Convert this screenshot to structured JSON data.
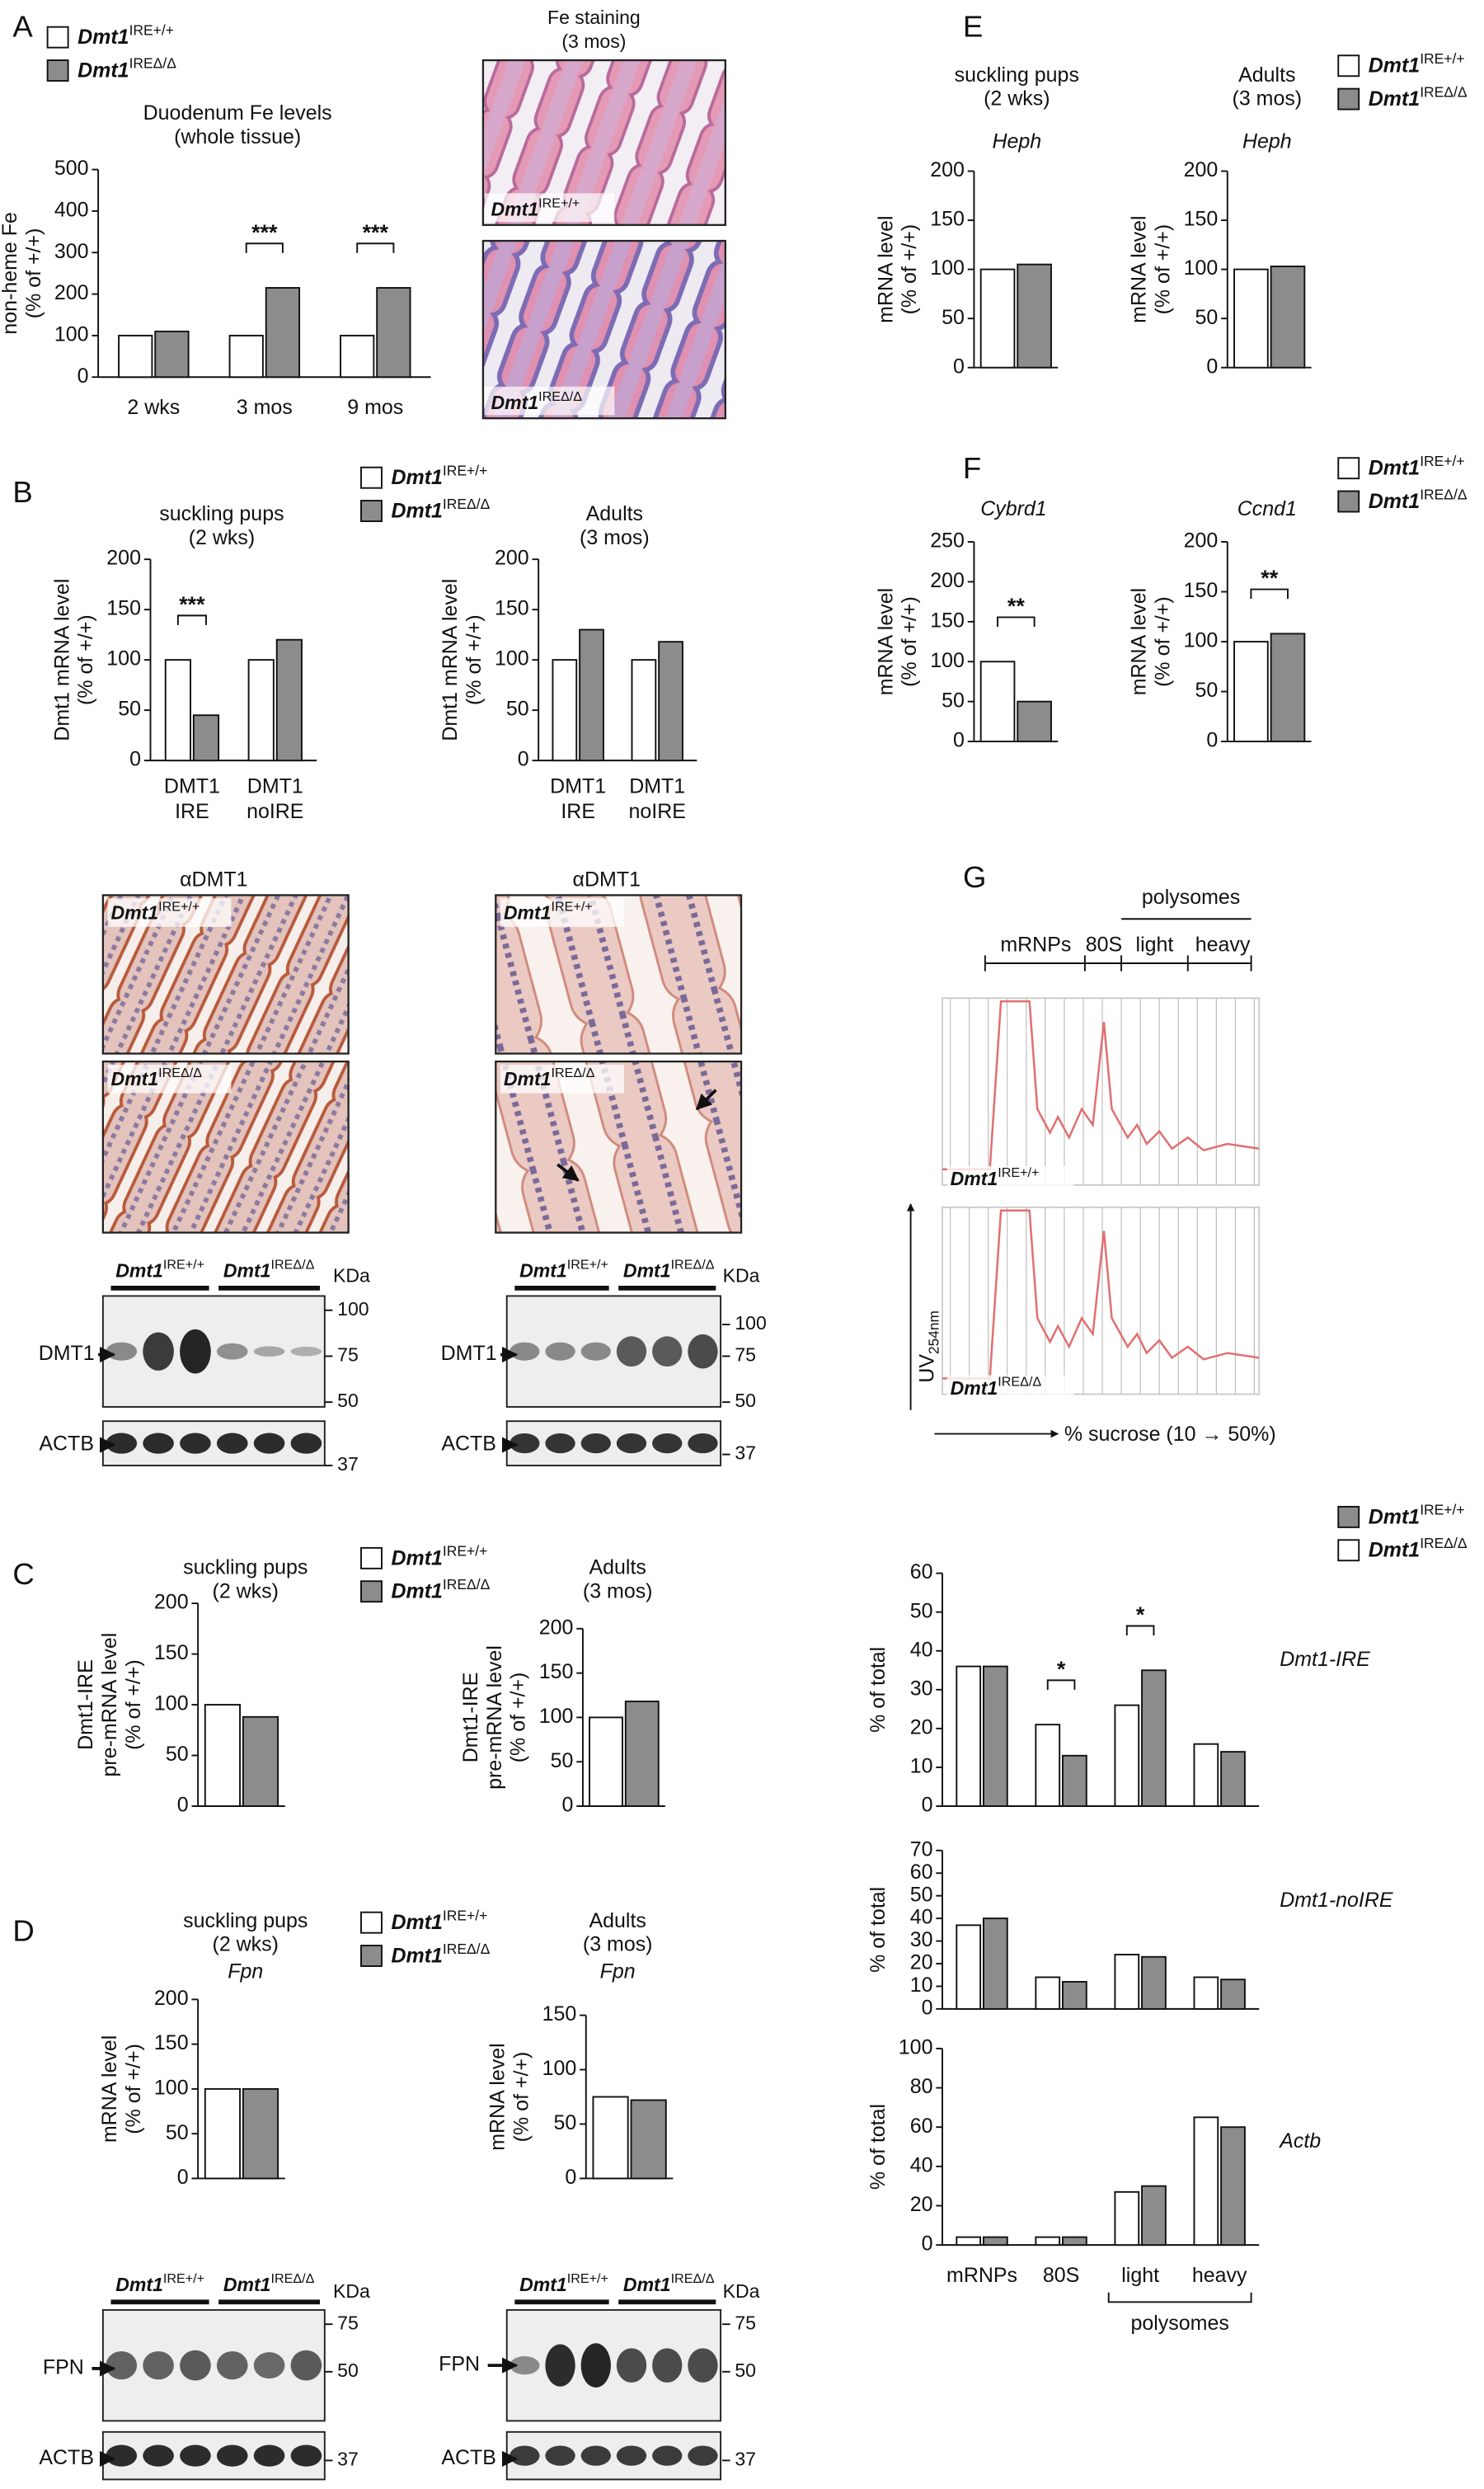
{
  "panels": [
    "A",
    "B",
    "C",
    "D",
    "E",
    "F",
    "G"
  ],
  "genotypes": [
    {
      "name": "Dmt1",
      "sup": "IRE+/+"
    },
    {
      "name": "Dmt1",
      "sup": "IREΔ/Δ"
    }
  ],
  "fe_staining": [
    "Fe staining",
    "(3 mos)"
  ],
  "ihc": "αDMT1",
  "blots": {
    "kda": "KDa",
    "dmt1": "DMT1",
    "actb": "ACTB",
    "fpn": "FPN",
    "markers_dmt1": [
      "100",
      "75",
      "50",
      "37"
    ],
    "markers_fpn": [
      "75",
      "50",
      "37"
    ]
  },
  "profile": {
    "mrnps": "mRNPs",
    "s80": "80S",
    "light": "light",
    "heavy": "heavy",
    "polysomes": "polysomes",
    "uv": "UV",
    "uv_sub": "254nm",
    "sucrose": "% sucrose (10 → 50%)"
  },
  "chart_data": [
    {
      "type": "bar",
      "title": [
        "Duodenum Fe levels",
        "(whole tissue)"
      ],
      "ylabel": [
        "non-heme Fe",
        "(% of +/+)"
      ],
      "categories": [
        "2 wks",
        "3 mos",
        "9 mos"
      ],
      "series": [
        {
          "name": "Dmt1",
          "sup": "IRE+/+",
          "color": "#ffffff",
          "values": [
            100,
            100,
            100
          ]
        },
        {
          "name": "Dmt1",
          "sup": "IREΔ/Δ",
          "color": "#8c8c8c",
          "values": [
            110,
            215,
            215
          ]
        }
      ],
      "ylim": [
        0,
        500
      ],
      "yticks": [
        0,
        100,
        200,
        300,
        400,
        500
      ],
      "significance": [
        null,
        "***",
        "***"
      ]
    },
    {
      "type": "bar",
      "title": [
        "suckling pups",
        "(2 wks)"
      ],
      "ylabel": [
        "Dmt1 mRNA level",
        "(% of +/+)"
      ],
      "categories": [
        [
          "DMT1",
          "IRE"
        ],
        [
          "DMT1",
          "noIRE"
        ]
      ],
      "series": [
        {
          "name": "Dmt1",
          "sup": "IRE+/+",
          "color": "#ffffff",
          "values": [
            100,
            100
          ]
        },
        {
          "name": "Dmt1",
          "sup": "IREΔ/Δ",
          "color": "#8c8c8c",
          "values": [
            45,
            120
          ]
        }
      ],
      "ylim": [
        0,
        200
      ],
      "yticks": [
        0,
        50,
        100,
        150,
        200
      ],
      "significance": [
        "***",
        null
      ]
    },
    {
      "type": "bar",
      "title": [
        "Adults",
        "(3 mos)"
      ],
      "ylabel": [
        "Dmt1 mRNA level",
        "(% of +/+)"
      ],
      "categories": [
        [
          "DMT1",
          "IRE"
        ],
        [
          "DMT1",
          "noIRE"
        ]
      ],
      "series": [
        {
          "name": "Dmt1",
          "sup": "IRE+/+",
          "color": "#ffffff",
          "values": [
            100,
            100
          ]
        },
        {
          "name": "Dmt1",
          "sup": "IREΔ/Δ",
          "color": "#8c8c8c",
          "values": [
            130,
            118
          ]
        }
      ],
      "ylim": [
        0,
        200
      ],
      "yticks": [
        0,
        50,
        100,
        150,
        200
      ]
    },
    {
      "type": "bar",
      "title": [
        "suckling pups",
        "(2 wks)"
      ],
      "ylabel": [
        "Dmt1-IRE",
        "pre-mRNA level",
        "(% of +/+)"
      ],
      "series": [
        {
          "name": "Dmt1",
          "sup": "IRE+/+",
          "color": "#ffffff",
          "values": [
            100
          ]
        },
        {
          "name": "Dmt1",
          "sup": "IREΔ/Δ",
          "color": "#8c8c8c",
          "values": [
            88
          ]
        }
      ],
      "ylim": [
        0,
        200
      ],
      "yticks": [
        0,
        50,
        100,
        150,
        200
      ]
    },
    {
      "type": "bar",
      "title": [
        "Adults",
        "(3 mos)"
      ],
      "ylabel": [
        "Dmt1-IRE",
        "pre-mRNA level",
        "(% of +/+)"
      ],
      "series": [
        {
          "name": "Dmt1",
          "sup": "IRE+/+",
          "color": "#ffffff",
          "values": [
            100
          ]
        },
        {
          "name": "Dmt1",
          "sup": "IREΔ/Δ",
          "color": "#8c8c8c",
          "values": [
            118
          ]
        }
      ],
      "ylim": [
        0,
        200
      ],
      "yticks": [
        0,
        50,
        100,
        150,
        200
      ]
    },
    {
      "type": "bar",
      "title": [
        "suckling pups",
        "(2 wks)"
      ],
      "gene": "Fpn",
      "ylabel": [
        "mRNA level",
        "(% of +/+)"
      ],
      "series": [
        {
          "name": "Dmt1",
          "sup": "IRE+/+",
          "color": "#ffffff",
          "values": [
            100
          ]
        },
        {
          "name": "Dmt1",
          "sup": "IREΔ/Δ",
          "color": "#8c8c8c",
          "values": [
            100
          ]
        }
      ],
      "ylim": [
        0,
        200
      ],
      "yticks": [
        0,
        50,
        100,
        150,
        200
      ]
    },
    {
      "type": "bar",
      "title": [
        "Adults",
        "(3 mos)"
      ],
      "gene": "Fpn",
      "ylabel": [
        "mRNA level",
        "(% of +/+)"
      ],
      "series": [
        {
          "name": "Dmt1",
          "sup": "IRE+/+",
          "color": "#ffffff",
          "values": [
            75
          ]
        },
        {
          "name": "Dmt1",
          "sup": "IREΔ/Δ",
          "color": "#8c8c8c",
          "values": [
            72
          ]
        }
      ],
      "ylim": [
        0,
        150
      ],
      "yticks": [
        0,
        50,
        100,
        150
      ]
    },
    {
      "type": "bar",
      "title": [
        "suckling pups",
        "(2 wks)"
      ],
      "gene": "Heph",
      "ylabel": [
        "mRNA level",
        "(% of +/+)"
      ],
      "series": [
        {
          "name": "Dmt1",
          "sup": "IRE+/+",
          "color": "#ffffff",
          "values": [
            100
          ]
        },
        {
          "name": "Dmt1",
          "sup": "IREΔ/Δ",
          "color": "#8c8c8c",
          "values": [
            105
          ]
        }
      ],
      "ylim": [
        0,
        200
      ],
      "yticks": [
        0,
        50,
        100,
        150,
        200
      ]
    },
    {
      "type": "bar",
      "title": [
        "Adults",
        "(3 mos)"
      ],
      "gene": "Heph",
      "ylabel": [
        "mRNA level",
        "(% of +/+)"
      ],
      "series": [
        {
          "name": "Dmt1",
          "sup": "IRE+/+",
          "color": "#ffffff",
          "values": [
            100
          ]
        },
        {
          "name": "Dmt1",
          "sup": "IREΔ/Δ",
          "color": "#8c8c8c",
          "values": [
            103
          ]
        }
      ],
      "ylim": [
        0,
        200
      ],
      "yticks": [
        0,
        50,
        100,
        150,
        200
      ]
    },
    {
      "type": "bar",
      "gene": "Cybrd1",
      "ylabel": [
        "mRNA level",
        "(% of +/+)"
      ],
      "series": [
        {
          "name": "Dmt1",
          "sup": "IRE+/+",
          "color": "#ffffff",
          "values": [
            100
          ]
        },
        {
          "name": "Dmt1",
          "sup": "IREΔ/Δ",
          "color": "#8c8c8c",
          "values": [
            50
          ]
        }
      ],
      "ylim": [
        0,
        250
      ],
      "yticks": [
        0,
        50,
        100,
        150,
        200,
        250
      ],
      "significance": [
        "**"
      ]
    },
    {
      "type": "bar",
      "gene": "Ccnd1",
      "ylabel": [
        "mRNA level",
        "(% of +/+)"
      ],
      "series": [
        {
          "name": "Dmt1",
          "sup": "IRE+/+",
          "color": "#ffffff",
          "values": [
            100
          ]
        },
        {
          "name": "Dmt1",
          "sup": "IREΔ/Δ",
          "color": "#8c8c8c",
          "values": [
            108
          ]
        }
      ],
      "ylim": [
        0,
        200
      ],
      "yticks": [
        0,
        50,
        100,
        150,
        200
      ],
      "significance": [
        "**"
      ]
    },
    {
      "type": "bar",
      "gene": "Dmt1-IRE",
      "ylabel": [
        "% of total"
      ],
      "series": [
        {
          "name": "Dmt1",
          "sup": "IRE+/+",
          "color": "#8c8c8c",
          "values": [
            36,
            13,
            35,
            14
          ]
        },
        {
          "name": "Dmt1",
          "sup": "IREΔ/Δ",
          "color": "#ffffff",
          "values": [
            36,
            21,
            26,
            16
          ]
        }
      ],
      "ylim": [
        0,
        60
      ],
      "yticks": [
        0,
        10,
        20,
        30,
        40,
        50,
        60
      ],
      "significance": [
        null,
        "*",
        "*",
        null
      ]
    },
    {
      "type": "bar",
      "gene": "Dmt1-noIRE",
      "ylabel": [
        "% of total"
      ],
      "series": [
        {
          "name": "Dmt1",
          "sup": "IRE+/+",
          "color": "#8c8c8c",
          "values": [
            40,
            12,
            23,
            13
          ]
        },
        {
          "name": "Dmt1",
          "sup": "IREΔ/Δ",
          "color": "#ffffff",
          "values": [
            37,
            14,
            24,
            14
          ]
        }
      ],
      "ylim": [
        0,
        70
      ],
      "yticks": [
        0,
        10,
        20,
        30,
        40,
        50,
        60,
        70
      ]
    },
    {
      "type": "bar",
      "gene": "Actb",
      "ylabel": [
        "% of total"
      ],
      "categories": [
        "mRNPs",
        "80S",
        "light",
        "heavy"
      ],
      "group_label": "polysomes",
      "series": [
        {
          "name": "Dmt1",
          "sup": "IRE+/+",
          "color": "#8c8c8c",
          "values": [
            4,
            4,
            30,
            60
          ]
        },
        {
          "name": "Dmt1",
          "sup": "IREΔ/Δ",
          "color": "#ffffff",
          "values": [
            4,
            4,
            27,
            65
          ]
        }
      ],
      "ylim": [
        0,
        100
      ],
      "yticks": [
        0,
        20,
        40,
        60,
        80,
        100
      ]
    }
  ]
}
